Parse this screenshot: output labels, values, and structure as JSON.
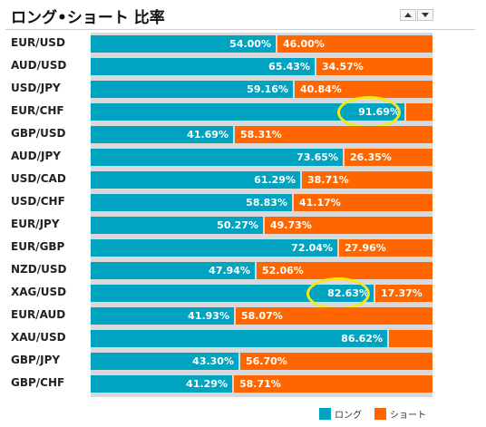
{
  "title": "ロング•ショート 比率",
  "icons": {
    "up": "arrow-up-icon",
    "down": "arrow-down-icon"
  },
  "colors": {
    "long": "#00a3c0",
    "short": "#ff6600",
    "highlight": "#f2ea18"
  },
  "legend": {
    "long": "ロング",
    "short": "ショート"
  },
  "chart_data": {
    "type": "bar",
    "stacked": true,
    "orientation": "horizontal",
    "categories": [
      "EUR/USD",
      "AUD/USD",
      "USD/JPY",
      "EUR/CHF",
      "GBP/USD",
      "AUD/JPY",
      "USD/CAD",
      "USD/CHF",
      "EUR/JPY",
      "EUR/GBP",
      "NZD/USD",
      "XAG/USD",
      "EUR/AUD",
      "XAU/USD",
      "GBP/JPY",
      "GBP/CHF"
    ],
    "series": [
      {
        "name": "ロング",
        "values": [
          54.0,
          65.43,
          59.16,
          91.69,
          41.69,
          73.65,
          61.29,
          58.83,
          50.27,
          72.04,
          47.94,
          82.63,
          41.93,
          86.62,
          43.3,
          41.29
        ]
      },
      {
        "name": "ショート",
        "values": [
          46.0,
          34.57,
          40.84,
          8.31,
          58.31,
          26.35,
          38.71,
          41.17,
          49.73,
          27.96,
          52.06,
          17.37,
          58.07,
          13.38,
          56.7,
          58.71
        ]
      }
    ],
    "long_labels": [
      "54.00%",
      "65.43%",
      "59.16%",
      "91.69%",
      "41.69%",
      "73.65%",
      "61.29%",
      "58.83%",
      "50.27%",
      "72.04%",
      "47.94%",
      "82.63%",
      "41.93%",
      "86.62%",
      "43.30%",
      "41.29%"
    ],
    "short_labels": [
      "46.00%",
      "34.57%",
      "40.84%",
      "",
      "58.31%",
      "26.35%",
      "38.71%",
      "41.17%",
      "49.73%",
      "27.96%",
      "52.06%",
      "17.37%",
      "58.07%",
      "",
      "56.70%",
      "58.71%"
    ],
    "highlighted": [
      "EUR/CHF",
      "XAG/USD"
    ],
    "xlim": [
      0,
      100
    ],
    "legend_position": "bottom-right"
  }
}
